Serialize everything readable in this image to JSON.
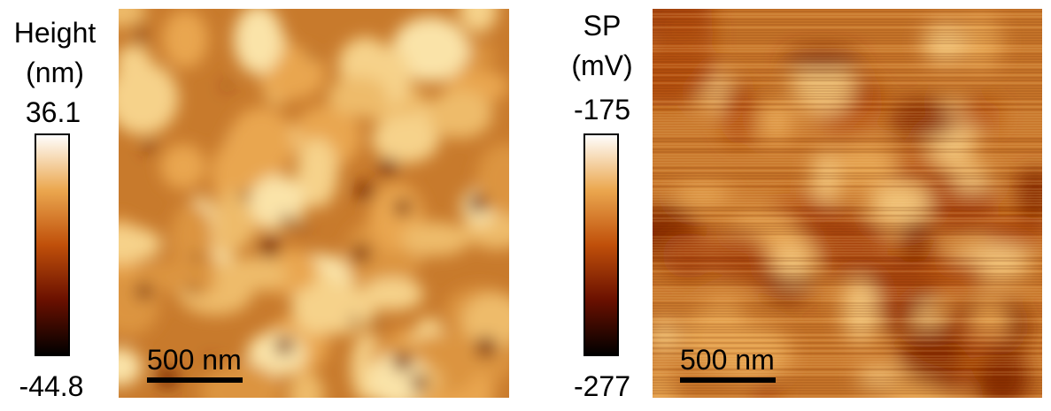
{
  "panels": [
    {
      "label": [
        "Height",
        "(nm)"
      ],
      "max": "36.1",
      "min": "-44.8",
      "scale_bar": "500 nm"
    },
    {
      "label": [
        "SP",
        "(mV)"
      ],
      "max": "-175",
      "min": "-277",
      "scale_bar": "500 nm"
    }
  ]
}
